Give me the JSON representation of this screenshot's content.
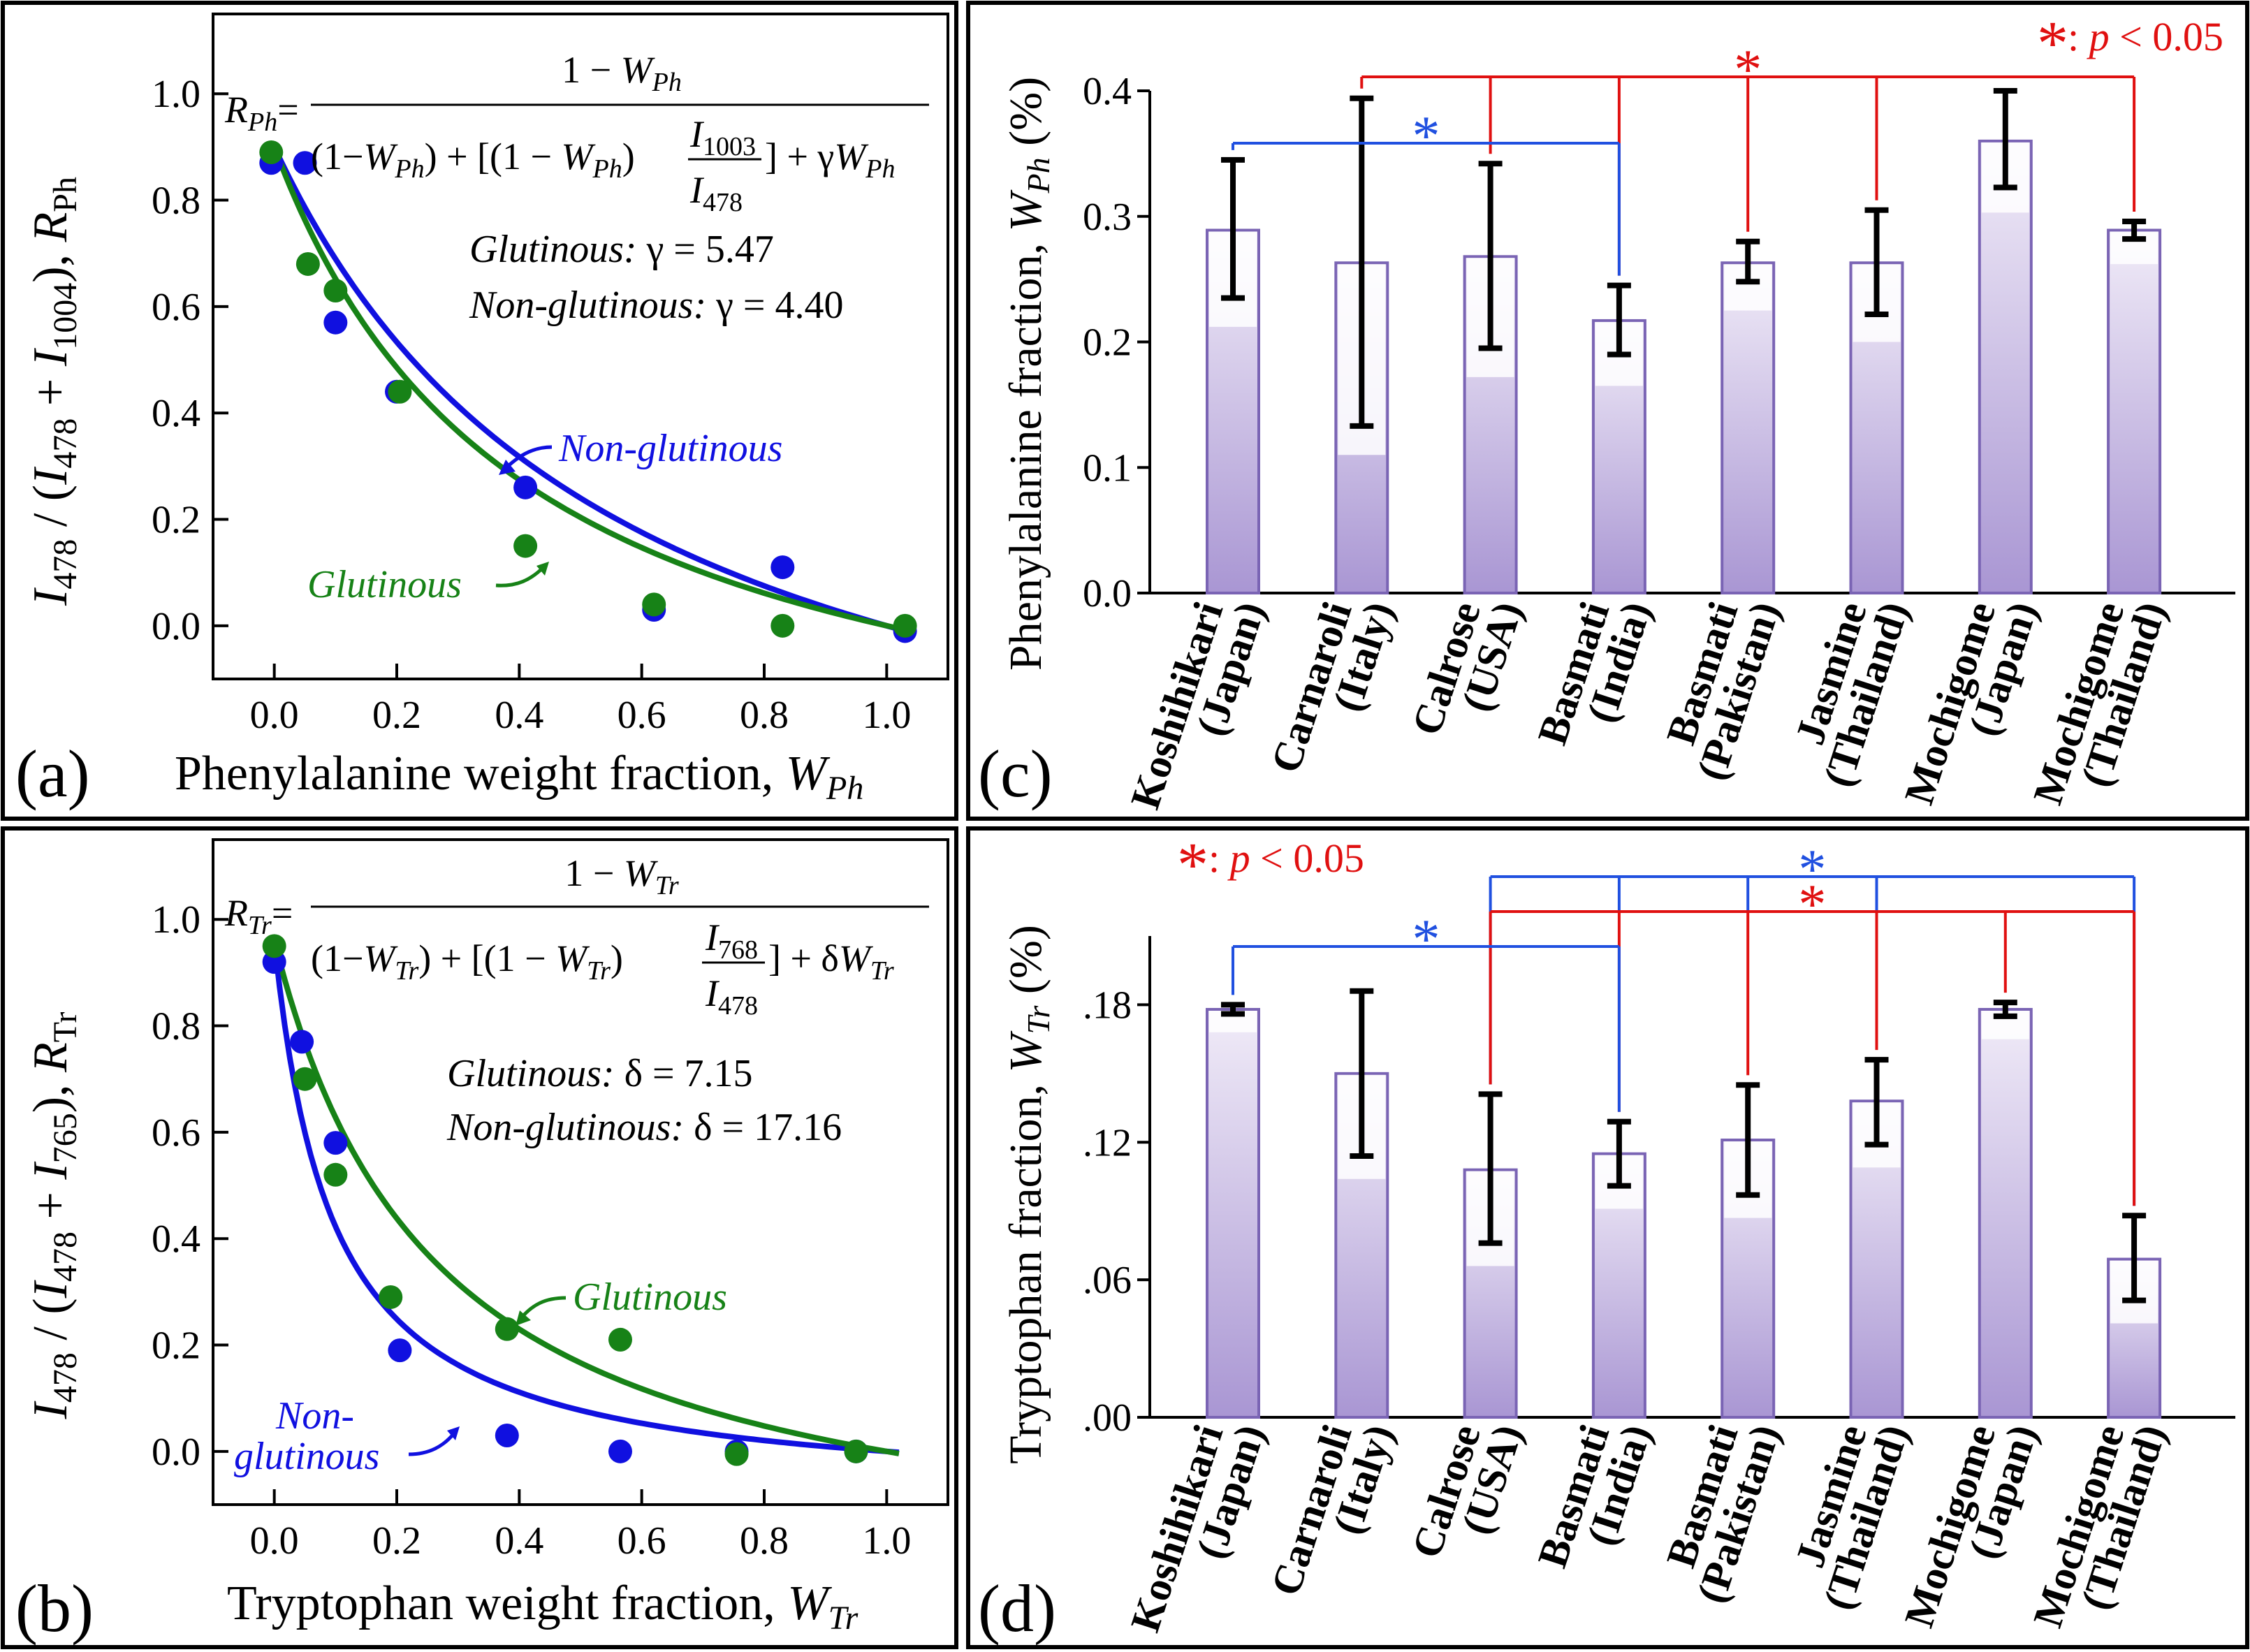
{
  "chart_data": [
    {
      "panel": "a",
      "type": "scatter",
      "title": "",
      "panel_label": "(a)",
      "xlabel": {
        "main": "Phenylalanine weight fraction, ",
        "var": "W",
        "sub": "Ph"
      },
      "ylabel": {
        "text": "I478 / (I478 + I1004), RPh"
      },
      "xlim": [
        -0.1,
        1.1
      ],
      "ylim": [
        -0.1,
        1.15
      ],
      "xticks": [
        0.0,
        0.2,
        0.4,
        0.6,
        0.8,
        1.0
      ],
      "xtick_labels": [
        "0.0",
        "0.2",
        "0.4",
        "0.6",
        "0.8",
        "1.0"
      ],
      "yticks": [
        0.0,
        0.2,
        0.4,
        0.6,
        0.8,
        1.0
      ],
      "ytick_labels": [
        "0.0",
        "0.2",
        "0.4",
        "0.6",
        "0.8",
        "1.0"
      ],
      "equation": {
        "lhs": "RPh=",
        "numerator": "1 − WPh",
        "denominator": "(1−WPh) + [(1 − WPh) I1003/I478] + γWPh"
      },
      "params": [
        {
          "label": "Glutinous:",
          "value": "γ = 5.47"
        },
        {
          "label": "Non-glutinous:",
          "value": "γ = 4.40"
        }
      ],
      "series": [
        {
          "name": "Non-glutinous",
          "color": "#1010e0",
          "fit_param": 4.4,
          "fit_kind": "Ph",
          "x": [
            -0.005,
            0.05,
            0.1,
            0.2,
            0.41,
            0.62,
            0.83,
            1.03
          ],
          "y": [
            0.87,
            0.87,
            0.57,
            0.44,
            0.26,
            0.03,
            0.11,
            -0.01
          ]
        },
        {
          "name": "Glutinous",
          "color": "#178217",
          "fit_param": 5.47,
          "fit_kind": "Ph",
          "x": [
            -0.005,
            0.055,
            0.1,
            0.205,
            0.41,
            0.62,
            0.83,
            1.03
          ],
          "y": [
            0.89,
            0.68,
            0.63,
            0.44,
            0.15,
            0.04,
            0.0,
            0.0
          ]
        }
      ],
      "annotations": [
        {
          "text": "Non-glutinous",
          "color": "#1010e0"
        },
        {
          "text": "Glutinous",
          "color": "#178217"
        }
      ]
    },
    {
      "panel": "b",
      "type": "scatter",
      "title": "",
      "panel_label": "(b)",
      "xlabel": {
        "main": "Tryptophan weight fraction, ",
        "var": "W",
        "sub": "Tr"
      },
      "ylabel": {
        "text": "I478 / (I478 + I765), RTr"
      },
      "xlim": [
        -0.1,
        1.1
      ],
      "ylim": [
        -0.1,
        1.15
      ],
      "xticks": [
        0.0,
        0.2,
        0.4,
        0.6,
        0.8,
        1.0
      ],
      "xtick_labels": [
        "0.0",
        "0.2",
        "0.4",
        "0.6",
        "0.8",
        "1.0"
      ],
      "yticks": [
        0.0,
        0.2,
        0.4,
        0.6,
        0.8,
        1.0
      ],
      "ytick_labels": [
        "0.0",
        "0.2",
        "0.4",
        "0.6",
        "0.8",
        "1.0"
      ],
      "equation": {
        "lhs": "RTr=",
        "numerator": "1 − WTr",
        "denominator": "(1−WTr) + [(1 − WTr) I768/I478] + δWTr"
      },
      "params": [
        {
          "label": "Glutinous:",
          "value": "δ = 7.15"
        },
        {
          "label": "Non-glutinous:",
          "value": "δ = 17.16"
        }
      ],
      "series": [
        {
          "name": "Non-glutinous",
          "color": "#1010e0",
          "fit_param": 17.16,
          "fit_kind": "Tr",
          "x": [
            0.0,
            0.045,
            0.1,
            0.205,
            0.38,
            0.565,
            0.755,
            0.95
          ],
          "y": [
            0.92,
            0.77,
            0.58,
            0.19,
            0.03,
            0.0,
            0.0,
            0.0
          ]
        },
        {
          "name": "Glutinous",
          "color": "#178217",
          "fit_param": 7.15,
          "fit_kind": "Tr",
          "x": [
            0.0,
            0.05,
            0.1,
            0.19,
            0.38,
            0.565,
            0.755,
            0.95
          ],
          "y": [
            0.95,
            0.7,
            0.52,
            0.29,
            0.23,
            0.21,
            -0.005,
            0.0
          ]
        }
      ],
      "annotations": [
        {
          "text": "Glutinous",
          "color": "#178217"
        },
        {
          "text": "Non-",
          "color": "#1010e0"
        },
        {
          "text": "glutinous",
          "color": "#1010e0"
        }
      ]
    },
    {
      "panel": "c",
      "type": "bar",
      "title": "",
      "panel_label": "(c)",
      "ylabel": "Phenylalanine fraction, WPh (%)",
      "ylim": [
        0,
        0.4
      ],
      "yticks": [
        0.0,
        0.1,
        0.2,
        0.3,
        0.4
      ],
      "ytick_labels": [
        "0.0",
        "0.1",
        "0.2",
        "0.3",
        "0.4"
      ],
      "categories": [
        [
          "Koshihikari",
          "(Japan)"
        ],
        [
          "Carnaroli",
          "(Italy)"
        ],
        [
          "Calrose",
          "(USA)"
        ],
        [
          "Basmati",
          "(India)"
        ],
        [
          "Basmati",
          "(Pakistan)"
        ],
        [
          "Jasmine",
          "(Thailand)"
        ],
        [
          "Mochigome",
          "(Japan)"
        ],
        [
          "Mochigome",
          "(Thailand)"
        ]
      ],
      "values": [
        0.289,
        0.263,
        0.268,
        0.217,
        0.263,
        0.263,
        0.36,
        0.289
      ],
      "err_low": [
        0.235,
        0.133,
        0.195,
        0.19,
        0.248,
        0.222,
        0.323,
        0.282
      ],
      "err_high": [
        0.345,
        0.394,
        0.342,
        0.245,
        0.28,
        0.305,
        0.4,
        0.296
      ],
      "inner_low": [
        0.212,
        0.11,
        0.172,
        0.165,
        0.225,
        0.2,
        0.303,
        0.262
      ],
      "significance": {
        "legend_star": "*",
        "legend_text": ": p < 0.05",
        "brackets": [
          {
            "color": "red",
            "star": "*",
            "from": 1,
            "to": 7,
            "drops": [
              2,
              3,
              4,
              5
            ]
          },
          {
            "color": "blue",
            "star": "*",
            "from": 0,
            "to": 3,
            "drops": []
          }
        ]
      }
    },
    {
      "panel": "d",
      "type": "bar",
      "title": "",
      "panel_label": "(d)",
      "ylabel": "Tryptophan fraction, WTr (%)",
      "ylim": [
        0,
        0.21
      ],
      "yticks": [
        0.0,
        0.06,
        0.12,
        0.18
      ],
      "ytick_labels": [
        ".00",
        ".06",
        ".12",
        ".18"
      ],
      "categories": [
        [
          "Koshihikari",
          "(Japan)"
        ],
        [
          "Carnaroli",
          "(Italy)"
        ],
        [
          "Calrose",
          "(USA)"
        ],
        [
          "Basmati",
          "(India)"
        ],
        [
          "Basmati",
          "(Pakistan)"
        ],
        [
          "Jasmine",
          "(Thailand)"
        ],
        [
          "Mochigome",
          "(Japan)"
        ],
        [
          "Mochigome",
          "(Thailand)"
        ]
      ],
      "values": [
        0.178,
        0.15,
        0.108,
        0.115,
        0.121,
        0.138,
        0.178,
        0.069
      ],
      "err_low": [
        0.176,
        0.114,
        0.076,
        0.101,
        0.097,
        0.119,
        0.175,
        0.051
      ],
      "err_high": [
        0.18,
        0.186,
        0.141,
        0.129,
        0.145,
        0.156,
        0.181,
        0.088
      ],
      "inner_low": [
        0.168,
        0.104,
        0.066,
        0.091,
        0.087,
        0.109,
        0.165,
        0.041
      ],
      "significance": {
        "legend_star": "*",
        "legend_text": ": p < 0.05",
        "brackets": [
          {
            "color": "blue",
            "star": "*",
            "from": 2,
            "to": 7,
            "drops": [
              3,
              4,
              5
            ]
          },
          {
            "color": "red",
            "star": "*",
            "from": 2,
            "to": 7,
            "drops": [
              3,
              4,
              5,
              6
            ]
          },
          {
            "color": "blue",
            "star": "*",
            "from": 0,
            "to": 3,
            "drops": []
          }
        ]
      }
    }
  ]
}
